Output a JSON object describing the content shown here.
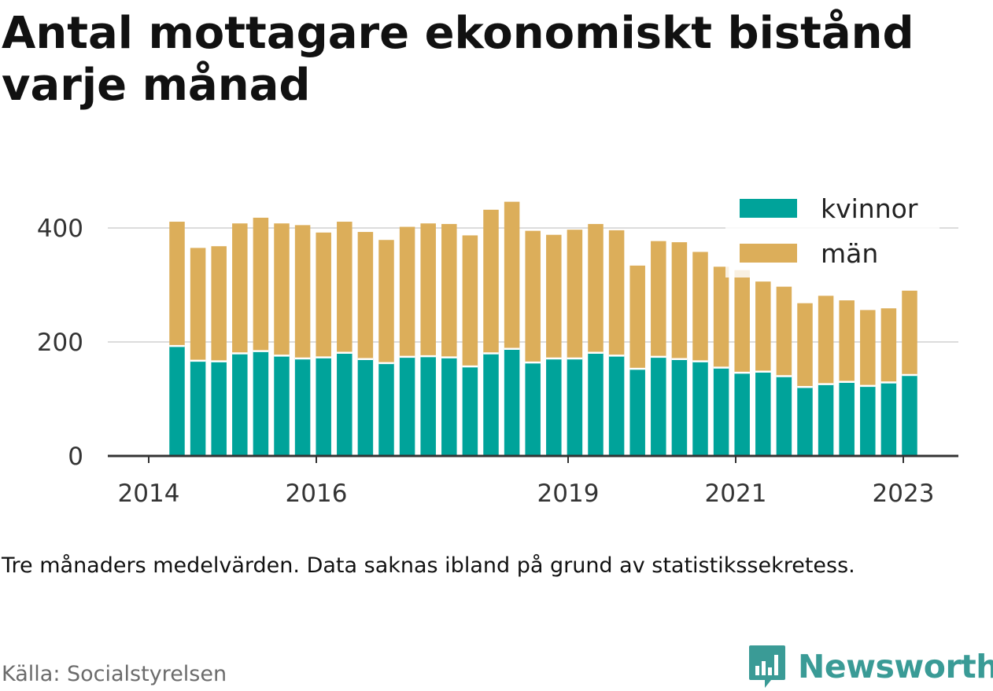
{
  "title": "Antal mottagare ekonomiskt bistånd varje månad",
  "note": "Tre månaders medelvärden. Data saknas ibland på grund av statistikssekretess.",
  "source": "Källa: Socialstyrelsen",
  "brand": {
    "name": "Newsworthy",
    "icon": "bar-chart-speech-bubble-icon",
    "color": "#3a9b96"
  },
  "chart_data": {
    "type": "bar",
    "stacked": true,
    "ylim": [
      0,
      470
    ],
    "y_ticks": [
      0,
      200,
      400
    ],
    "x_ticks": [
      "2014",
      "2016",
      "2019",
      "2021",
      "2023"
    ],
    "grid": true,
    "legend": {
      "position": "top-right"
    },
    "series": [
      {
        "name": "kvinnor",
        "color": "#00a39a",
        "values": [
          193,
          167,
          166,
          180,
          184,
          176,
          171,
          173,
          181,
          170,
          163,
          174,
          175,
          173,
          157,
          180,
          188,
          164,
          171,
          171,
          181,
          176,
          153,
          174,
          170,
          166,
          155,
          146,
          148,
          140,
          121,
          126,
          130,
          123,
          129,
          142
        ]
      },
      {
        "name": "män",
        "color": "#dcae5a",
        "values": [
          218,
          198,
          202,
          228,
          234,
          232,
          234,
          219,
          230,
          223,
          216,
          228,
          233,
          234,
          230,
          252,
          258,
          231,
          217,
          226,
          226,
          220,
          181,
          203,
          205,
          192,
          177,
          180,
          158,
          157,
          147,
          155,
          143,
          133,
          130,
          148
        ]
      }
    ]
  }
}
